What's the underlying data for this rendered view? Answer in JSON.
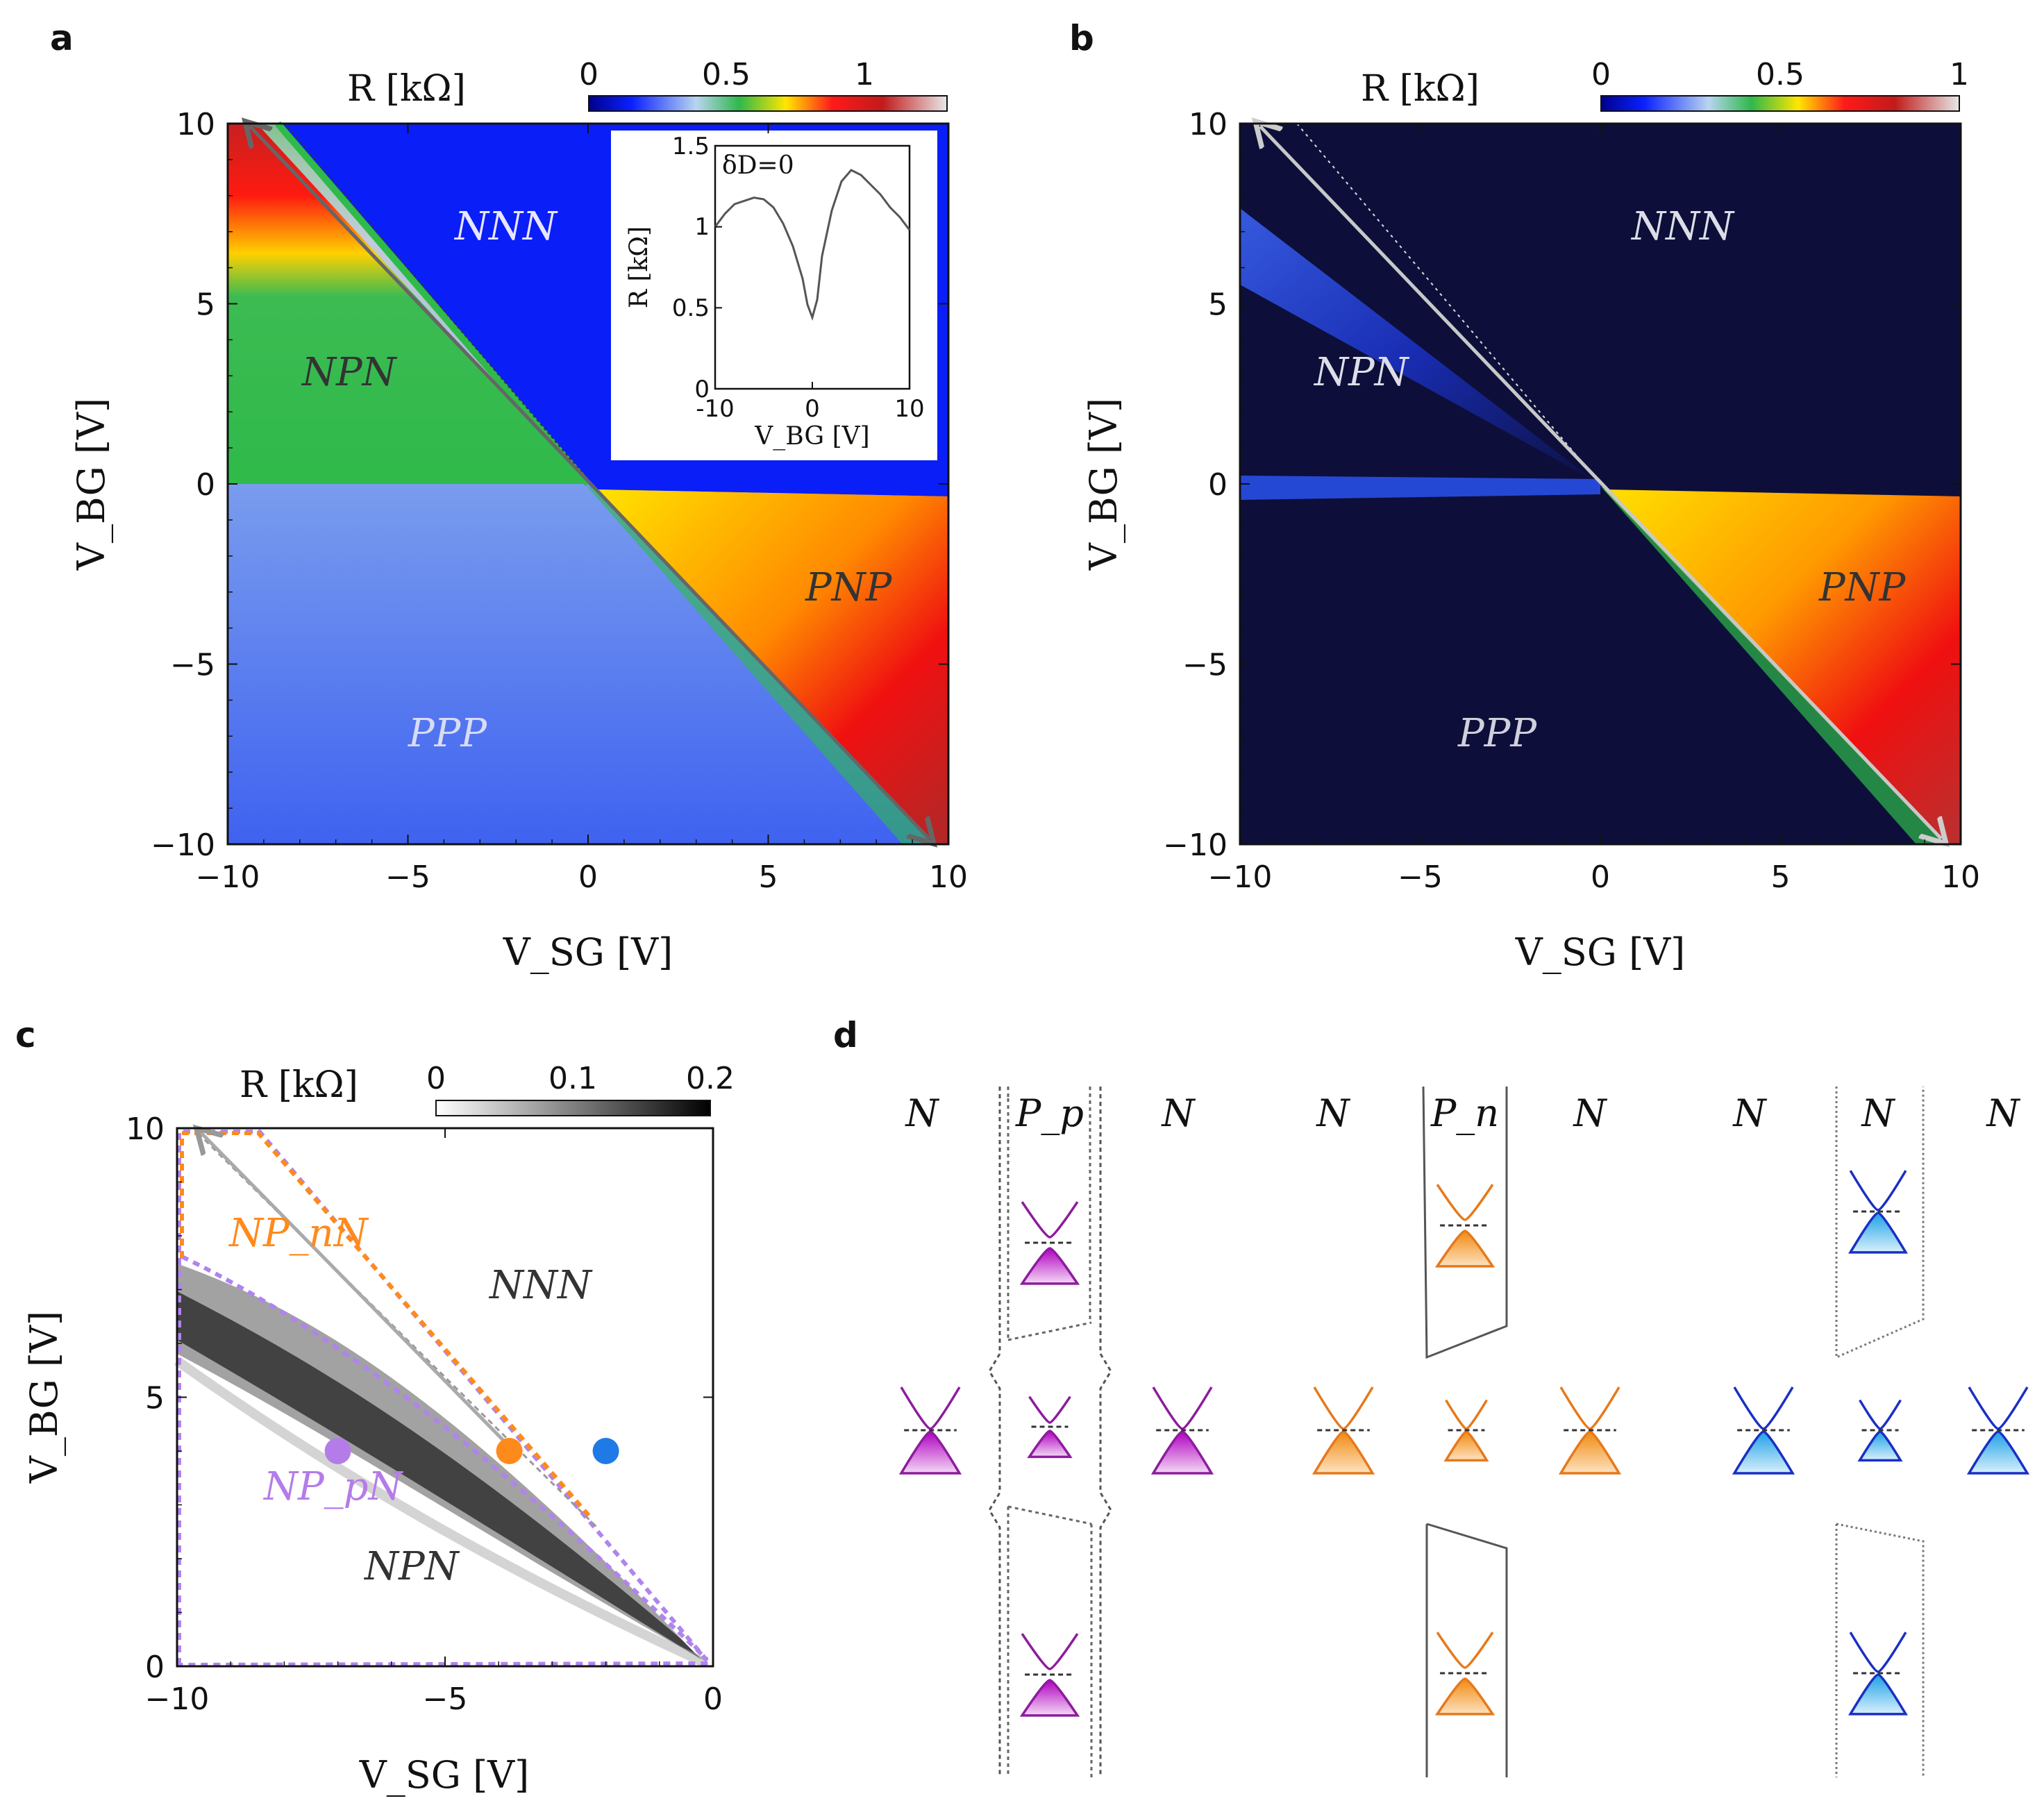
{
  "chart_data": [
    {
      "panel": "a",
      "type": "heatmap",
      "xlabel": "V_SG [V]",
      "ylabel": "V_BG [V]",
      "xlim": [
        -10,
        10
      ],
      "ylim": [
        -10,
        10
      ],
      "xticks": [
        "−10",
        "−5",
        "0",
        "5",
        "10"
      ],
      "yticks": [
        "10",
        "5",
        "0",
        "−5",
        "−10"
      ],
      "colorbar": {
        "label": "R [kΩ]",
        "ticks": [
          "0",
          "0.5",
          "1"
        ],
        "range": [
          0,
          1.3
        ]
      },
      "regions": [
        "NNN",
        "NPN",
        "PNP",
        "PPP"
      ],
      "inset": {
        "type": "line",
        "label": "δD=0",
        "xlabel": "V_BG [V]",
        "ylabel": "R [kΩ]",
        "xlim": [
          -10,
          10
        ],
        "ylim": [
          0,
          1.5
        ],
        "xticks": [
          "-10",
          "0",
          "10"
        ],
        "yticks": [
          "1.5",
          "1",
          "0.5",
          "0"
        ],
        "x": [
          -10,
          -9,
          -8,
          -7,
          -6,
          -5,
          -4,
          -3,
          -2,
          -1,
          -0.5,
          0,
          0.5,
          1,
          2,
          3,
          4,
          5,
          6,
          7,
          8,
          9,
          10
        ],
        "y": [
          1.0,
          1.08,
          1.14,
          1.16,
          1.18,
          1.17,
          1.12,
          1.02,
          0.88,
          0.68,
          0.52,
          0.44,
          0.55,
          0.82,
          1.1,
          1.28,
          1.35,
          1.32,
          1.26,
          1.2,
          1.12,
          1.06,
          0.98
        ]
      }
    },
    {
      "panel": "b",
      "type": "heatmap",
      "xlabel": "V_SG [V]",
      "ylabel": "V_BG [V]",
      "xlim": [
        -10,
        10
      ],
      "ylim": [
        -10,
        10
      ],
      "xticks": [
        "−10",
        "−5",
        "0",
        "5",
        "10"
      ],
      "yticks": [
        "10",
        "5",
        "0",
        "−5",
        "−10"
      ],
      "colorbar": {
        "label": "R [kΩ]",
        "ticks": [
          "0",
          "0.5",
          "1"
        ],
        "range": [
          0,
          1
        ]
      },
      "regions": [
        "NNN",
        "NPN",
        "PNP",
        "PPP"
      ]
    },
    {
      "panel": "c",
      "type": "heatmap",
      "xlabel": "V_SG [V]",
      "ylabel": "V_BG [V]",
      "xlim": [
        -10,
        0
      ],
      "ylim": [
        0,
        10
      ],
      "xticks": [
        "−10",
        "−5",
        "0"
      ],
      "yticks": [
        "10",
        "5",
        "0"
      ],
      "colorbar": {
        "label": "R [kΩ]",
        "ticks": [
          "0",
          "0.1",
          "0.2"
        ],
        "range": [
          0,
          0.2
        ]
      },
      "regions": [
        "NNN",
        "NPN",
        "NP_nN",
        "NP_pN"
      ],
      "markers": [
        {
          "x": -7,
          "y": 4,
          "color": "#b47ce8"
        },
        {
          "x": -3.8,
          "y": 4,
          "color": "#ff8a1c"
        },
        {
          "x": -2,
          "y": 4,
          "color": "#1f7ae6"
        }
      ]
    }
  ],
  "labels": {
    "a": "a",
    "b": "b",
    "c": "c",
    "d": "d",
    "x_axis": "V_SG [V]",
    "y_axis": "V_BG [V]",
    "colorbar": "R [kΩ]"
  },
  "panel_d": {
    "columns": [
      "N",
      "P_p",
      "N",
      "N",
      "P_n",
      "N",
      "N",
      "N",
      "N"
    ],
    "colors": {
      "purple": "#8c1d9c",
      "orange": "#e6791c",
      "blue": "#1a2fc4"
    }
  }
}
